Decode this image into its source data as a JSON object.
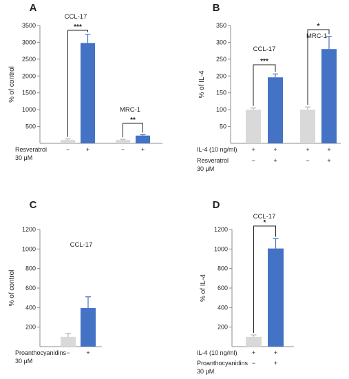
{
  "chart_data": [
    {
      "type": "bar",
      "panel": "A",
      "ylabel": "% of control",
      "ylim": [
        0,
        3500
      ],
      "yticks": [
        500,
        1000,
        1500,
        2000,
        2500,
        3000,
        3500
      ],
      "tick_labels": [
        "500",
        "1000",
        "1500",
        "2000",
        "2500",
        "3000",
        "3500"
      ],
      "colors": [
        "#d9d9d9",
        "#4472c4",
        "#d9d9d9",
        "#4472c4"
      ],
      "bars": [
        {
          "group": "CCL-17",
          "treatment": "−",
          "value": 100,
          "error": 30
        },
        {
          "group": "CCL-17",
          "treatment": "+",
          "value": 2980,
          "error": 260
        },
        {
          "group": "MRC-1",
          "treatment": "−",
          "value": 100,
          "error": 20
        },
        {
          "group": "MRC-1",
          "treatment": "+",
          "value": 230,
          "error": 25
        }
      ],
      "groups": [
        "CCL-17",
        "MRC-1"
      ],
      "significance": [
        {
          "label": "***",
          "bars": [
            0,
            1
          ]
        },
        {
          "label": "**",
          "bars": [
            2,
            3
          ]
        }
      ],
      "rows": [
        {
          "label": [
            "Resveratrol",
            "30 μM"
          ],
          "symbols": [
            "−",
            "+",
            "−",
            "+"
          ]
        }
      ]
    },
    {
      "type": "bar",
      "panel": "B",
      "ylabel": "% of IL-4",
      "ylim": [
        0,
        350
      ],
      "yticks": [
        50,
        100,
        150,
        200,
        250,
        300,
        350
      ],
      "tick_labels": [
        "50",
        "100",
        "150",
        "200",
        "250",
        "300",
        "350"
      ],
      "colors": [
        "#d9d9d9",
        "#4472c4",
        "#d9d9d9",
        "#4472c4"
      ],
      "bars": [
        {
          "group": "CCL-17",
          "treatment": "−",
          "value": 100,
          "error": 5
        },
        {
          "group": "CCL-17",
          "treatment": "+",
          "value": 196,
          "error": 10
        },
        {
          "group": "MRC-1",
          "treatment": "−",
          "value": 100,
          "error": 8
        },
        {
          "group": "MRC-1",
          "treatment": "+",
          "value": 280,
          "error": 38
        }
      ],
      "groups": [
        "CCL-17",
        "MRC-1"
      ],
      "significance": [
        {
          "label": "***",
          "bars": [
            0,
            1
          ]
        },
        {
          "label": "*",
          "bars": [
            2,
            3
          ]
        }
      ],
      "rows": [
        {
          "label": [
            "IL-4 (10 ng/ml)"
          ],
          "symbols": [
            "+",
            "+",
            "+",
            "+"
          ]
        },
        {
          "label": [
            "Resveratrol",
            "30 μM"
          ],
          "symbols": [
            "−",
            "+",
            "−",
            "+"
          ]
        }
      ]
    },
    {
      "type": "bar",
      "panel": "C",
      "ylabel": "% of control",
      "ylim": [
        0,
        1200
      ],
      "yticks": [
        200,
        400,
        600,
        800,
        1000,
        1200
      ],
      "tick_labels": [
        "200",
        "400",
        "600",
        "800",
        "1000",
        "1200"
      ],
      "colors": [
        "#d9d9d9",
        "#4472c4"
      ],
      "bars": [
        {
          "group": "CCL-17",
          "treatment": "−",
          "value": 100,
          "error": 35
        },
        {
          "group": "CCL-17",
          "treatment": "+",
          "value": 395,
          "error": 115
        }
      ],
      "groups": [
        "CCL-17"
      ],
      "significance": [],
      "rows": [
        {
          "label": [
            "Proanthocyanidins",
            "30 μM"
          ],
          "symbols": [
            "−",
            "+"
          ]
        }
      ]
    },
    {
      "type": "bar",
      "panel": "D",
      "ylabel": "% of IL-4",
      "ylim": [
        0,
        1200
      ],
      "yticks": [
        200,
        400,
        600,
        800,
        1000,
        1200
      ],
      "tick_labels": [
        "200",
        "400",
        "600",
        "800",
        "1000",
        "1200"
      ],
      "colors": [
        "#d9d9d9",
        "#4472c4"
      ],
      "bars": [
        {
          "group": "CCL-17",
          "treatment": "−",
          "value": 100,
          "error": 20
        },
        {
          "group": "CCL-17",
          "treatment": "+",
          "value": 1005,
          "error": 100
        }
      ],
      "groups": [
        "CCL-17"
      ],
      "significance": [
        {
          "label": "*",
          "bars": [
            0,
            1
          ]
        }
      ],
      "rows": [
        {
          "label": [
            "IL-4 (10 ng/ml)"
          ],
          "symbols": [
            "+",
            "+"
          ]
        },
        {
          "label": [
            "Proanthocyanidins",
            "30 μM"
          ],
          "symbols": [
            "−",
            "+"
          ]
        }
      ]
    }
  ]
}
